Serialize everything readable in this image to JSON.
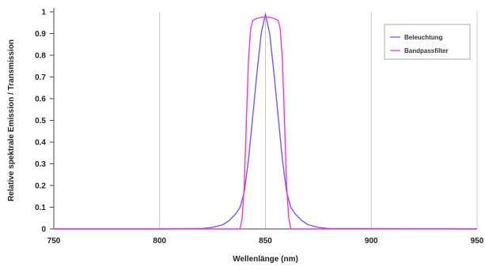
{
  "chart_data": {
    "type": "line",
    "title": "",
    "xlabel": "Wellenlänge (nm)",
    "ylabel": "Relative spektrale Emission / Transmission",
    "xlim": [
      750,
      950
    ],
    "ylim": [
      0,
      1
    ],
    "x_ticks": [
      "750",
      "800",
      "850",
      "900",
      "950"
    ],
    "y_ticks": [
      "0",
      "0.1",
      "0.2",
      "0.3",
      "0.4",
      "0.5",
      "0.6",
      "0.7",
      "0.8",
      "0.9",
      "1"
    ],
    "grid": "vertical",
    "legend_position": "top-right",
    "series": [
      {
        "name": "Beleuchtung",
        "color": "#6a5cff",
        "x": [
          750,
          800,
          820,
          825,
          830,
          833,
          836,
          838,
          840,
          842,
          844,
          846,
          848,
          850,
          852,
          854,
          856,
          858,
          860,
          862,
          864,
          867,
          870,
          875,
          880,
          950
        ],
        "y": [
          0,
          0,
          0.002,
          0.007,
          0.02,
          0.04,
          0.07,
          0.1,
          0.17,
          0.32,
          0.52,
          0.72,
          0.9,
          0.99,
          0.9,
          0.72,
          0.52,
          0.32,
          0.17,
          0.1,
          0.07,
          0.04,
          0.02,
          0.007,
          0.002,
          0
        ]
      },
      {
        "name": "Bandpassfilter",
        "color": "#ff33cc",
        "x": [
          750,
          838,
          839,
          840,
          841,
          842,
          843,
          844,
          846,
          848,
          850,
          852,
          854,
          856,
          857,
          858,
          859,
          860,
          861,
          862,
          950
        ],
        "y": [
          0,
          0,
          0.05,
          0.2,
          0.5,
          0.78,
          0.92,
          0.96,
          0.97,
          0.975,
          0.975,
          0.975,
          0.97,
          0.96,
          0.92,
          0.78,
          0.5,
          0.2,
          0.05,
          0,
          0
        ]
      }
    ]
  }
}
